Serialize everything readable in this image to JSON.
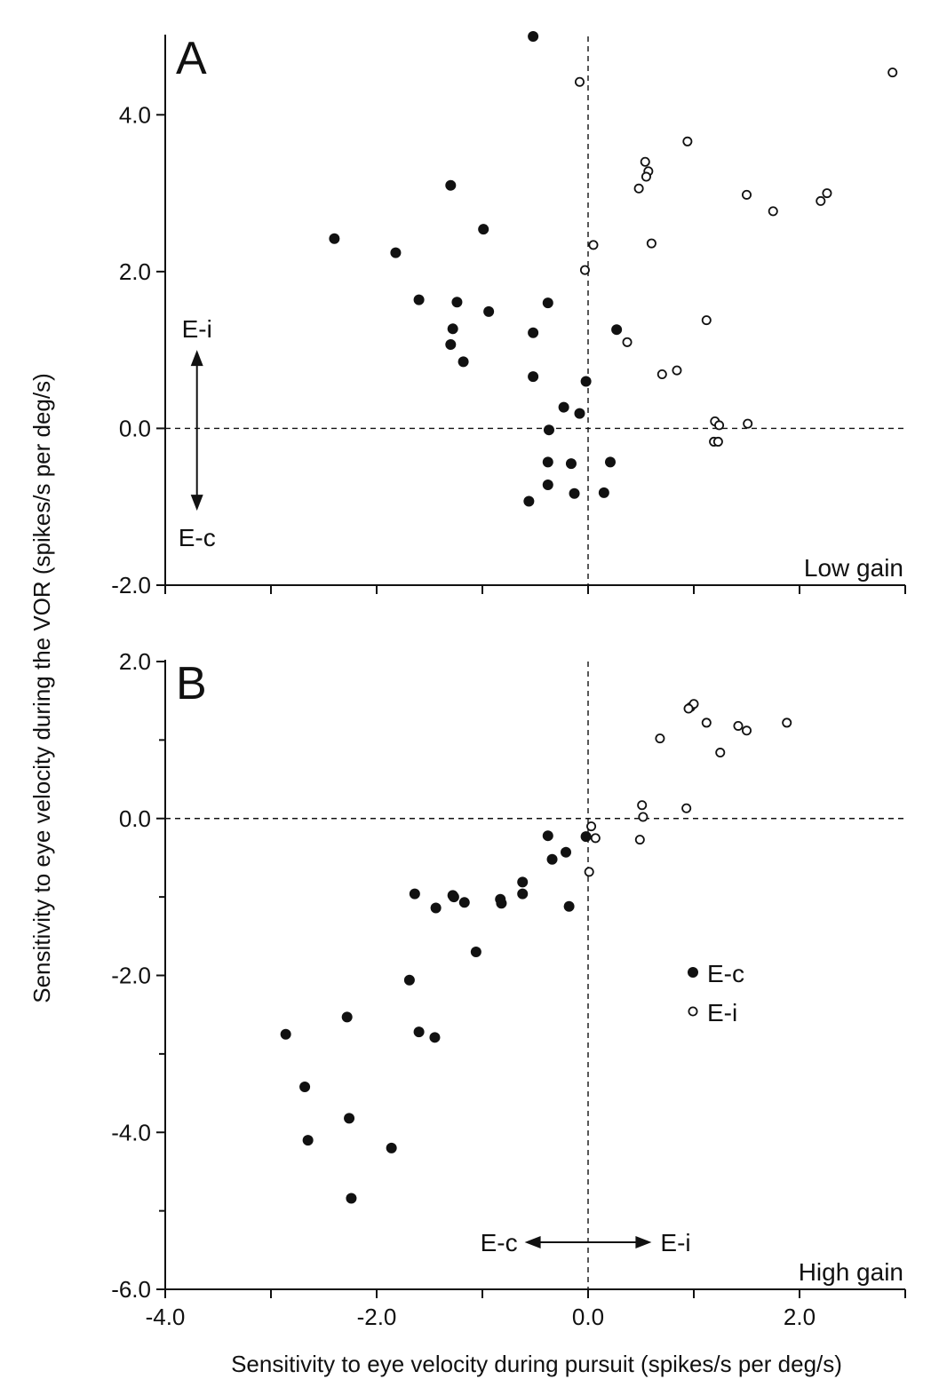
{
  "chart_data": [
    {
      "type": "scatter",
      "panel_label": "A",
      "corner_label": "Low gain",
      "xlim": [
        -4.0,
        3.0
      ],
      "ylim": [
        -2.0,
        5.0
      ],
      "y_ticks": [
        4.0,
        2.0,
        0.0,
        -2.0
      ],
      "y_tick_labels": [
        "4.0",
        "2.0",
        "0.0",
        "-2.0"
      ],
      "x_ticks": [
        -4.0,
        -3.0,
        -2.0,
        -1.0,
        0.0,
        1.0,
        2.0,
        3.0
      ],
      "grid": false,
      "reference_lines": {
        "x": 0.0,
        "y": 0.0,
        "style": "dashed"
      },
      "arrow_annotation": {
        "direction": "vertical",
        "x": -3.7,
        "from": 1.0,
        "to": -1.05,
        "label_top": "E-i",
        "label_bottom": "E-c"
      },
      "series": [
        {
          "name": "E-c",
          "marker": "filled",
          "points": [
            [
              -0.52,
              5.0
            ],
            [
              -1.3,
              3.1
            ],
            [
              -2.4,
              2.42
            ],
            [
              -1.82,
              2.24
            ],
            [
              -0.99,
              2.54
            ],
            [
              -1.6,
              1.64
            ],
            [
              -1.24,
              1.61
            ],
            [
              -0.94,
              1.49
            ],
            [
              -0.38,
              1.6
            ],
            [
              -1.28,
              1.27
            ],
            [
              -0.52,
              1.22
            ],
            [
              -1.3,
              1.07
            ],
            [
              -1.18,
              0.85
            ],
            [
              -0.52,
              0.66
            ],
            [
              -0.02,
              0.6
            ],
            [
              -0.23,
              0.27
            ],
            [
              -0.08,
              0.19
            ],
            [
              -0.37,
              -0.02
            ],
            [
              -0.38,
              -0.43
            ],
            [
              -0.16,
              -0.45
            ],
            [
              0.21,
              -0.43
            ],
            [
              -0.38,
              -0.72
            ],
            [
              -0.13,
              -0.83
            ],
            [
              0.15,
              -0.82
            ],
            [
              -0.56,
              -0.93
            ],
            [
              0.27,
              1.26
            ]
          ]
        },
        {
          "name": "E-i",
          "marker": "open",
          "points": [
            [
              -0.08,
              4.42
            ],
            [
              2.88,
              4.54
            ],
            [
              0.94,
              3.66
            ],
            [
              0.54,
              3.4
            ],
            [
              0.57,
              3.28
            ],
            [
              0.55,
              3.21
            ],
            [
              0.48,
              3.06
            ],
            [
              1.5,
              2.98
            ],
            [
              1.75,
              2.77
            ],
            [
              2.2,
              2.9
            ],
            [
              2.26,
              3.0
            ],
            [
              0.05,
              2.34
            ],
            [
              0.6,
              2.36
            ],
            [
              -0.03,
              2.02
            ],
            [
              1.12,
              1.38
            ],
            [
              0.37,
              1.1
            ],
            [
              0.7,
              0.69
            ],
            [
              0.84,
              0.74
            ],
            [
              1.2,
              0.09
            ],
            [
              1.24,
              0.04
            ],
            [
              1.51,
              0.06
            ],
            [
              1.19,
              -0.17
            ],
            [
              1.23,
              -0.17
            ]
          ]
        }
      ]
    },
    {
      "type": "scatter",
      "panel_label": "B",
      "corner_label": "High gain",
      "xlim": [
        -4.0,
        3.0
      ],
      "ylim": [
        -6.0,
        2.0
      ],
      "x_ticks": [
        -4.0,
        -3.0,
        -2.0,
        -1.0,
        0.0,
        1.0,
        2.0,
        3.0
      ],
      "x_tick_labels": [
        "-4.0",
        "-2.0",
        "0.0",
        "2.0"
      ],
      "x_tick_label_values": [
        -4.0,
        -2.0,
        0.0,
        2.0
      ],
      "y_ticks": [
        2.0,
        0.0,
        -2.0,
        -4.0,
        -6.0
      ],
      "y_tick_labels": [
        "2.0",
        "0.0",
        "-2.0",
        "-4.0",
        "-6.0"
      ],
      "minor_y_ticks": [
        1.0,
        -1.0,
        -3.0,
        -5.0
      ],
      "grid": false,
      "reference_lines": {
        "x": 0.0,
        "y": 0.0,
        "style": "dashed"
      },
      "arrow_annotation": {
        "direction": "horizontal",
        "y": -5.4,
        "from": -0.6,
        "to": 0.6,
        "label_left": "E-c",
        "label_right": "E-i"
      },
      "legend": {
        "placement": "lower-right",
        "entries": [
          {
            "label": "E-c",
            "marker": "filled"
          },
          {
            "label": "E-i",
            "marker": "open"
          }
        ]
      },
      "series": [
        {
          "name": "E-c",
          "marker": "filled",
          "points": [
            [
              -0.38,
              -0.22
            ],
            [
              -0.02,
              -0.23
            ],
            [
              -0.21,
              -0.43
            ],
            [
              -0.34,
              -0.52
            ],
            [
              -0.62,
              -0.81
            ],
            [
              -0.62,
              -0.96
            ],
            [
              -1.64,
              -0.96
            ],
            [
              -1.28,
              -0.98
            ],
            [
              -1.27,
              -1.0
            ],
            [
              -1.44,
              -1.14
            ],
            [
              -1.17,
              -1.07
            ],
            [
              -0.83,
              -1.03
            ],
            [
              -0.82,
              -1.08
            ],
            [
              -0.18,
              -1.12
            ],
            [
              -1.06,
              -1.7
            ],
            [
              -1.69,
              -2.06
            ],
            [
              -2.28,
              -2.53
            ],
            [
              -2.86,
              -2.75
            ],
            [
              -1.6,
              -2.72
            ],
            [
              -1.45,
              -2.79
            ],
            [
              -2.68,
              -3.42
            ],
            [
              -2.26,
              -3.82
            ],
            [
              -2.65,
              -4.1
            ],
            [
              -1.86,
              -4.2
            ],
            [
              -2.24,
              -4.84
            ]
          ]
        },
        {
          "name": "E-i",
          "marker": "open",
          "points": [
            [
              0.97,
              1.42
            ],
            [
              1.0,
              1.46
            ],
            [
              0.95,
              1.4
            ],
            [
              1.12,
              1.22
            ],
            [
              1.42,
              1.18
            ],
            [
              1.5,
              1.12
            ],
            [
              1.88,
              1.22
            ],
            [
              0.68,
              1.02
            ],
            [
              1.25,
              0.84
            ],
            [
              0.51,
              0.17
            ],
            [
              0.52,
              0.02
            ],
            [
              0.93,
              0.13
            ],
            [
              0.03,
              -0.1
            ],
            [
              0.07,
              -0.25
            ],
            [
              0.49,
              -0.27
            ],
            [
              0.01,
              -0.68
            ]
          ]
        }
      ]
    }
  ],
  "figure": {
    "ylabel": "Sensitivity to eye velocity during the VOR (spikes/s per deg/s)",
    "xlabel": "Sensitivity to eye velocity during pursuit (spikes/s per deg/s)"
  }
}
